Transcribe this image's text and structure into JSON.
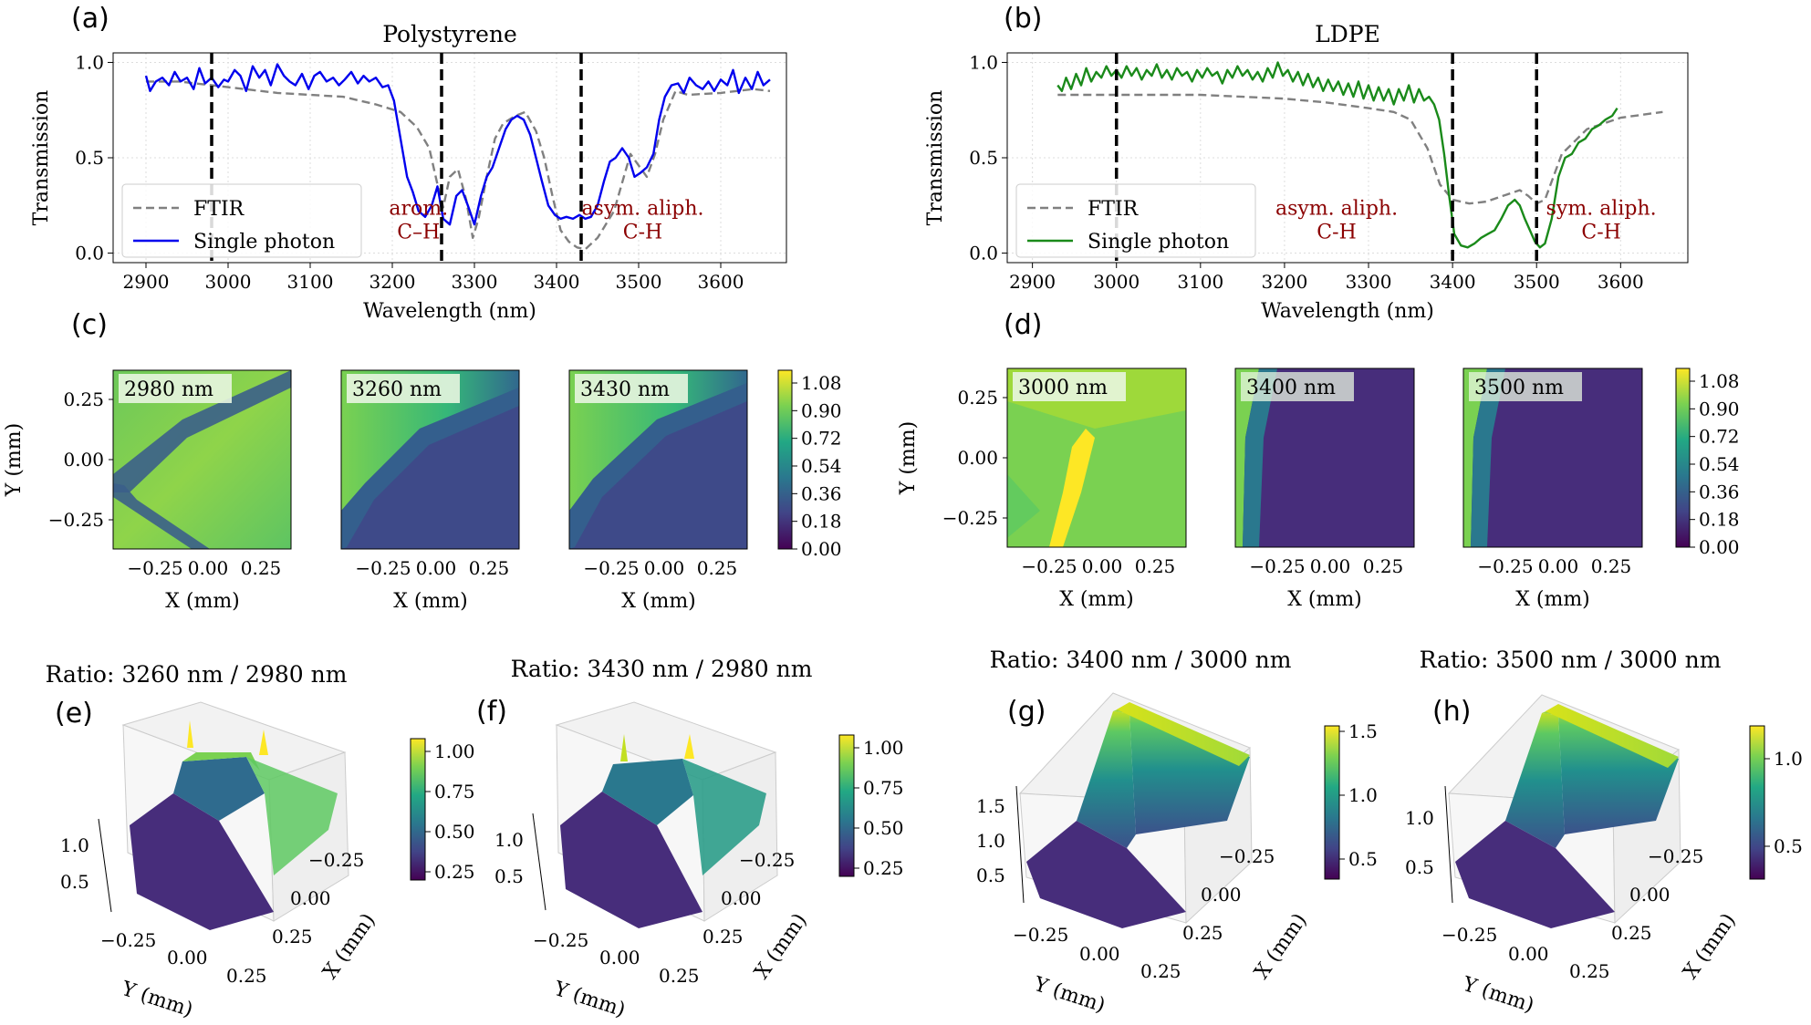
{
  "colors": {
    "ftir": "#808080",
    "ps_single": "#0000ee",
    "ldpe_single": "#1a8a1a",
    "vline": "#000000",
    "annotation": "#8b0000",
    "grid": "#dddddd"
  },
  "panel_labels": {
    "a": "(a)",
    "b": "(b)",
    "c": "(c)",
    "d": "(d)",
    "e": "(e)",
    "f": "(f)",
    "g": "(g)",
    "h": "(h)"
  },
  "chart_data": [
    {
      "id": "a",
      "type": "line",
      "title": "Polystyrene",
      "xlabel": "Wavelength (nm)",
      "ylabel": "Transmission",
      "xlim": [
        2860,
        3680
      ],
      "ylim": [
        -0.05,
        1.05
      ],
      "xticks": [
        2900,
        3000,
        3100,
        3200,
        3300,
        3400,
        3500,
        3600
      ],
      "yticks": [
        0.0,
        0.5,
        1.0
      ],
      "ytick_labels": [
        "0.0",
        "0.5",
        "1.0"
      ],
      "grid": true,
      "legend_position": "lower-left",
      "legend": [
        "FTIR",
        "Single photon"
      ],
      "vlines": [
        2980,
        3260,
        3430
      ],
      "annotations": [
        {
          "x": 3232,
          "y": 0.2,
          "lines": [
            "arom.",
            "C–H"
          ]
        },
        {
          "x": 3505,
          "y": 0.2,
          "lines": [
            "asym. aliph.",
            "C-H"
          ]
        }
      ],
      "series": [
        {
          "name": "FTIR",
          "style": "dashed",
          "color": "#808080",
          "x": [
            2900,
            2940,
            2980,
            3020,
            3060,
            3100,
            3140,
            3180,
            3210,
            3230,
            3245,
            3255,
            3262,
            3270,
            3280,
            3290,
            3298,
            3305,
            3315,
            3325,
            3335,
            3350,
            3362,
            3375,
            3385,
            3395,
            3405,
            3415,
            3425,
            3435,
            3450,
            3470,
            3490,
            3500,
            3510,
            3520,
            3530,
            3545,
            3560,
            3600,
            3640,
            3660
          ],
          "y": [
            0.9,
            0.9,
            0.88,
            0.86,
            0.84,
            0.83,
            0.82,
            0.78,
            0.74,
            0.66,
            0.55,
            0.36,
            0.24,
            0.4,
            0.44,
            0.28,
            0.08,
            0.18,
            0.4,
            0.6,
            0.68,
            0.72,
            0.74,
            0.64,
            0.5,
            0.3,
            0.12,
            0.06,
            0.03,
            0.02,
            0.08,
            0.22,
            0.52,
            0.46,
            0.4,
            0.52,
            0.7,
            0.85,
            0.83,
            0.84,
            0.86,
            0.85
          ]
        },
        {
          "name": "Single photon",
          "style": "solid",
          "color": "#0000ee",
          "x": [
            2900,
            2905,
            2912,
            2920,
            2928,
            2935,
            2942,
            2950,
            2958,
            2965,
            2972,
            2980,
            2988,
            2995,
            3000,
            3008,
            3015,
            3022,
            3030,
            3038,
            3045,
            3052,
            3060,
            3068,
            3075,
            3082,
            3090,
            3098,
            3105,
            3112,
            3120,
            3128,
            3135,
            3142,
            3150,
            3158,
            3165,
            3172,
            3180,
            3188,
            3195,
            3202,
            3210,
            3218,
            3225,
            3232,
            3240,
            3248,
            3255,
            3262,
            3270,
            3278,
            3285,
            3292,
            3300,
            3308,
            3315,
            3322,
            3330,
            3338,
            3345,
            3352,
            3360,
            3368,
            3375,
            3382,
            3390,
            3398,
            3405,
            3412,
            3420,
            3428,
            3435,
            3442,
            3450,
            3458,
            3465,
            3472,
            3480,
            3488,
            3495,
            3502,
            3510,
            3518,
            3525,
            3532,
            3540,
            3548,
            3555,
            3562,
            3570,
            3578,
            3585,
            3592,
            3600,
            3608,
            3615,
            3622,
            3630,
            3638,
            3645,
            3652,
            3660
          ],
          "y": [
            0.93,
            0.85,
            0.9,
            0.92,
            0.88,
            0.95,
            0.9,
            0.92,
            0.86,
            0.97,
            0.89,
            0.92,
            0.87,
            0.91,
            0.9,
            0.96,
            0.93,
            0.85,
            0.98,
            0.92,
            0.96,
            0.88,
            0.99,
            0.93,
            0.9,
            0.88,
            0.94,
            0.86,
            0.93,
            0.95,
            0.9,
            0.92,
            0.88,
            0.91,
            0.95,
            0.89,
            0.93,
            0.9,
            0.92,
            0.87,
            0.88,
            0.8,
            0.6,
            0.4,
            0.32,
            0.22,
            0.19,
            0.25,
            0.35,
            0.18,
            0.15,
            0.3,
            0.33,
            0.25,
            0.15,
            0.3,
            0.4,
            0.45,
            0.55,
            0.65,
            0.7,
            0.72,
            0.7,
            0.62,
            0.5,
            0.38,
            0.25,
            0.2,
            0.18,
            0.19,
            0.18,
            0.2,
            0.18,
            0.19,
            0.25,
            0.38,
            0.48,
            0.5,
            0.55,
            0.5,
            0.4,
            0.42,
            0.45,
            0.52,
            0.7,
            0.82,
            0.88,
            0.89,
            0.84,
            0.92,
            0.88,
            0.86,
            0.9,
            0.85,
            0.91,
            0.88,
            0.96,
            0.84,
            0.92,
            0.86,
            0.95,
            0.88,
            0.91
          ]
        }
      ]
    },
    {
      "id": "b",
      "type": "line",
      "title": "LDPE",
      "xlabel": "Wavelength (nm)",
      "ylabel": "Transmission",
      "xlim": [
        2870,
        3680
      ],
      "ylim": [
        -0.05,
        1.05
      ],
      "xticks": [
        2900,
        3000,
        3100,
        3200,
        3300,
        3400,
        3500,
        3600
      ],
      "yticks": [
        0.0,
        0.5,
        1.0
      ],
      "ytick_labels": [
        "0.0",
        "0.5",
        "1.0"
      ],
      "grid": true,
      "legend_position": "lower-left",
      "legend": [
        "FTIR",
        "Single photon"
      ],
      "vlines": [
        3000,
        3400,
        3500
      ],
      "annotations": [
        {
          "x": 3262,
          "y": 0.2,
          "lines": [
            "asym. aliph.",
            "C-H"
          ]
        },
        {
          "x": 3577,
          "y": 0.2,
          "lines": [
            "sym. aliph.",
            "C-H"
          ]
        }
      ],
      "series": [
        {
          "name": "FTIR",
          "style": "dashed",
          "color": "#808080",
          "x": [
            2930,
            2980,
            3040,
            3100,
            3150,
            3200,
            3250,
            3300,
            3330,
            3350,
            3370,
            3385,
            3400,
            3420,
            3440,
            3460,
            3480,
            3490,
            3500,
            3510,
            3530,
            3560,
            3600,
            3650
          ],
          "y": [
            0.83,
            0.83,
            0.83,
            0.83,
            0.82,
            0.81,
            0.79,
            0.76,
            0.74,
            0.7,
            0.55,
            0.36,
            0.28,
            0.26,
            0.27,
            0.3,
            0.33,
            0.3,
            0.26,
            0.28,
            0.52,
            0.65,
            0.71,
            0.74
          ]
        },
        {
          "name": "Single photon",
          "style": "solid",
          "color": "#1a8a1a",
          "x": [
            2930,
            2935,
            2940,
            2946,
            2952,
            2958,
            2964,
            2970,
            2976,
            2982,
            2988,
            2994,
            3000,
            3006,
            3012,
            3018,
            3024,
            3030,
            3036,
            3042,
            3048,
            3054,
            3060,
            3066,
            3072,
            3078,
            3084,
            3090,
            3096,
            3102,
            3108,
            3114,
            3120,
            3126,
            3132,
            3138,
            3144,
            3150,
            3156,
            3162,
            3168,
            3174,
            3180,
            3186,
            3192,
            3198,
            3204,
            3210,
            3216,
            3222,
            3228,
            3234,
            3240,
            3246,
            3252,
            3258,
            3264,
            3270,
            3276,
            3282,
            3288,
            3294,
            3300,
            3306,
            3312,
            3318,
            3324,
            3330,
            3336,
            3342,
            3348,
            3354,
            3360,
            3366,
            3372,
            3378,
            3384,
            3390,
            3396,
            3402,
            3410,
            3418,
            3426,
            3434,
            3442,
            3450,
            3458,
            3466,
            3474,
            3480,
            3486,
            3492,
            3498,
            3504,
            3510,
            3518,
            3526,
            3534,
            3542,
            3550,
            3558,
            3566,
            3574,
            3582,
            3590,
            3596
          ],
          "y": [
            0.88,
            0.85,
            0.92,
            0.86,
            0.94,
            0.88,
            0.97,
            0.9,
            0.95,
            0.92,
            0.98,
            0.93,
            0.96,
            0.92,
            0.98,
            0.93,
            0.97,
            0.91,
            0.96,
            0.93,
            0.99,
            0.92,
            0.96,
            0.91,
            0.97,
            0.93,
            0.95,
            0.9,
            0.96,
            0.92,
            0.97,
            0.93,
            0.95,
            0.89,
            0.96,
            0.92,
            0.98,
            0.93,
            0.96,
            0.91,
            0.95,
            0.9,
            0.97,
            0.92,
            1.0,
            0.93,
            0.96,
            0.9,
            0.95,
            0.88,
            0.94,
            0.87,
            0.92,
            0.85,
            0.91,
            0.85,
            0.9,
            0.83,
            0.89,
            0.82,
            0.9,
            0.81,
            0.88,
            0.8,
            0.87,
            0.8,
            0.86,
            0.78,
            0.86,
            0.8,
            0.88,
            0.79,
            0.86,
            0.8,
            0.82,
            0.78,
            0.7,
            0.52,
            0.3,
            0.1,
            0.04,
            0.03,
            0.05,
            0.08,
            0.1,
            0.12,
            0.18,
            0.25,
            0.28,
            0.25,
            0.18,
            0.12,
            0.06,
            0.03,
            0.05,
            0.18,
            0.4,
            0.5,
            0.52,
            0.58,
            0.6,
            0.65,
            0.67,
            0.7,
            0.72,
            0.76
          ]
        }
      ]
    },
    {
      "id": "c",
      "type": "heatmap",
      "xlabel": "X (mm)",
      "ylabel": "Y (mm)",
      "xticks": [
        "−0.25",
        "0.00",
        "0.25"
      ],
      "yticks": [
        "0.25",
        "0.00",
        "−0.25"
      ],
      "maps": [
        {
          "label": "2980 nm"
        },
        {
          "label": "3260 nm"
        },
        {
          "label": "3430 nm"
        }
      ],
      "colorbar": {
        "ticks": [
          "1.08",
          "0.90",
          "0.72",
          "0.54",
          "0.36",
          "0.18",
          "0.00"
        ]
      }
    },
    {
      "id": "d",
      "type": "heatmap",
      "xlabel": "X (mm)",
      "ylabel": "Y (mm)",
      "xticks": [
        "−0.25",
        "0.00",
        "0.25"
      ],
      "yticks": [
        "0.25",
        "0.00",
        "−0.25"
      ],
      "maps": [
        {
          "label": "3000 nm"
        },
        {
          "label": "3400 nm"
        },
        {
          "label": "3500 nm"
        }
      ],
      "colorbar": {
        "ticks": [
          "1.08",
          "0.90",
          "0.72",
          "0.54",
          "0.36",
          "0.18",
          "0.00"
        ]
      }
    },
    {
      "id": "e",
      "type": "surface",
      "title": "Ratio: 3260 nm / 2980 nm",
      "xlabel": "X (mm)",
      "ylabel": "Y (mm)",
      "zticks": [
        "1.0",
        "0.5"
      ],
      "yticks": [
        "−0.25",
        "0.00",
        "0.25"
      ],
      "xticks": [
        "−0.25",
        "0.00",
        "0.25"
      ],
      "colorbar": {
        "ticks": [
          "1.00",
          "0.75",
          "0.50",
          "0.25"
        ]
      }
    },
    {
      "id": "f",
      "type": "surface",
      "title": "Ratio: 3430 nm / 2980 nm",
      "xlabel": "X (mm)",
      "ylabel": "Y (mm)",
      "zticks": [
        "1.0",
        "0.5"
      ],
      "yticks": [
        "−0.25",
        "0.00",
        "0.25"
      ],
      "xticks": [
        "−0.25",
        "0.00",
        "0.25"
      ],
      "colorbar": {
        "ticks": [
          "1.00",
          "0.75",
          "0.50",
          "0.25"
        ]
      }
    },
    {
      "id": "g",
      "type": "surface",
      "title": "Ratio: 3400 nm / 3000 nm",
      "xlabel": "X (mm)",
      "ylabel": "Y (mm)",
      "zticks": [
        "1.5",
        "1.0",
        "0.5"
      ],
      "yticks": [
        "−0.25",
        "0.00",
        "0.25"
      ],
      "xticks": [
        "−0.25",
        "0.00",
        "0.25"
      ],
      "colorbar": {
        "ticks": [
          "1.5",
          "1.0",
          "0.5"
        ]
      }
    },
    {
      "id": "h",
      "type": "surface",
      "title": "Ratio: 3500 nm / 3000 nm",
      "xlabel": "X (mm)",
      "ylabel": "Y (mm)",
      "zticks": [
        "1.0",
        "0.5"
      ],
      "yticks": [
        "−0.25",
        "0.00",
        "0.25"
      ],
      "xticks": [
        "−0.25",
        "0.00",
        "0.25"
      ],
      "colorbar": {
        "ticks": [
          "1.0",
          "0.5"
        ]
      }
    }
  ]
}
